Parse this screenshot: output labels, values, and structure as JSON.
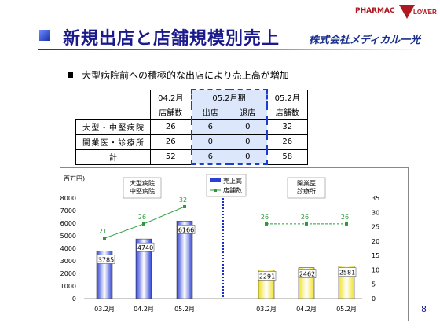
{
  "header": {
    "title": "新規出店と店舗規模別売上",
    "logo_top": "PHARMAC",
    "logo_top2": "LOWER",
    "logo_main": "株式会社メディカル一光"
  },
  "subtitle": "大型病院前への積極的な出店により売上高が増加",
  "table": {
    "col_headers": [
      "04.2月",
      "05.2月期",
      "05.2月"
    ],
    "sub_headers": [
      "店舗数",
      "出店",
      "退店",
      "店舗数"
    ],
    "rows": [
      {
        "label": "大型・中堅病院",
        "values": [
          "26",
          "6",
          "0",
          "32"
        ]
      },
      {
        "label": "開業医・診療所",
        "values": [
          "26",
          "0",
          "0",
          "26"
        ]
      },
      {
        "label": "計",
        "values": [
          "52",
          "6",
          "0",
          "58"
        ]
      }
    ]
  },
  "chart_data": {
    "type": "bar",
    "unit_label": "百万円)",
    "y_left_ticks": [
      "0",
      "1000",
      "2000",
      "3000",
      "4000",
      "5000",
      "6000",
      "7000",
      "8000"
    ],
    "y_right_ticks": [
      "0",
      "5",
      "10",
      "15",
      "20",
      "25",
      "30",
      "35"
    ],
    "ylim_left": [
      0,
      8000
    ],
    "ylim_right": [
      0,
      35
    ],
    "legend": [
      "売上高",
      "店舗数"
    ],
    "legend_placement": "top-center",
    "groups": [
      {
        "label": "大型病院\n中堅病院",
        "label_lines": [
          "大型病院",
          "中堅病院"
        ],
        "categories": [
          "03.2月",
          "04.2月",
          "05.2月"
        ],
        "sales": [
          3785,
          4740,
          6166
        ],
        "stores": [
          21,
          26,
          32
        ],
        "bar_color": "#2b3fd6"
      },
      {
        "label": "開業医\n診療所",
        "label_lines": [
          "開業医",
          "診療所"
        ],
        "categories": [
          "03.2月",
          "04.2月",
          "05.2月"
        ],
        "sales": [
          2291,
          2462,
          2581
        ],
        "stores": [
          26,
          26,
          26
        ],
        "bar_color": "#f0e020"
      }
    ],
    "line_color": "#2a9a3a",
    "divider_color": "#1a2fd0"
  },
  "page_number": "8"
}
